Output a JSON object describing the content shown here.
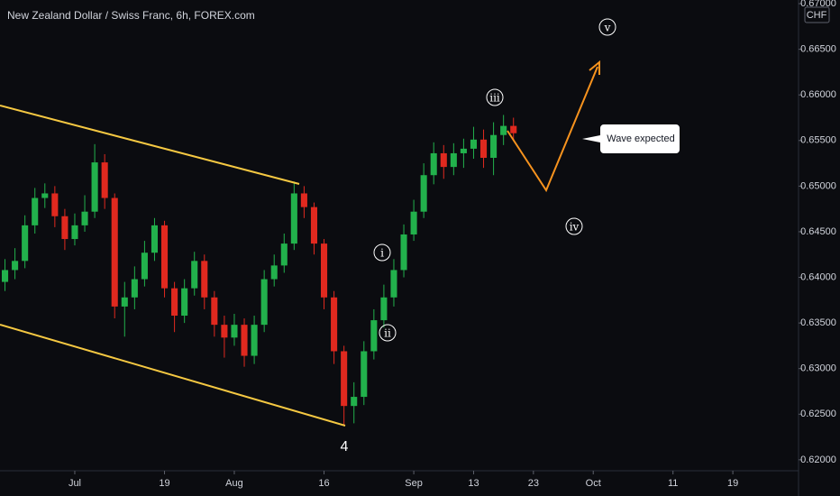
{
  "chart_data": {
    "type": "candlestick",
    "title": "New Zealand Dollar / Swiss Franc, 6h, FOREX.com",
    "currency": "CHF",
    "up_color": "#22b14c",
    "down_color": "#e0291f",
    "categories": [
      null,
      null,
      null,
      null,
      null,
      null,
      null,
      "Jul",
      null,
      null,
      null,
      null,
      null,
      null,
      null,
      null,
      "19",
      null,
      null,
      null,
      null,
      null,
      null,
      "Aug",
      null,
      null,
      null,
      null,
      null,
      null,
      null,
      null,
      "16",
      null,
      null,
      null,
      null,
      null,
      null,
      null,
      null,
      "Sep",
      null,
      null,
      null,
      null,
      null,
      "13",
      null,
      null,
      null,
      null,
      null,
      "23",
      null,
      null,
      null,
      null,
      null,
      "Oct",
      null,
      null,
      null,
      null,
      null,
      null,
      null,
      "11",
      null,
      null,
      null,
      null,
      null,
      "19",
      null,
      null,
      null,
      null,
      null,
      null
    ],
    "open": [
      0.6395,
      0.6408,
      0.6418,
      0.6457,
      0.6487,
      0.6492,
      0.6467,
      0.6442,
      0.6457,
      0.6472,
      0.6526,
      0.6487,
      0.6368,
      0.6378,
      0.6398,
      0.6427,
      0.6457,
      0.6388,
      0.6358,
      0.6388,
      0.6418,
      0.6378,
      0.6348,
      0.6334,
      0.6348,
      0.6314,
      0.6348,
      0.6398,
      0.6413,
      0.6437,
      0.6492,
      0.6477,
      0.6437,
      0.6378,
      0.6319,
      0.6259,
      0.6269,
      0.6319,
      0.6353,
      0.6378,
      0.6408,
      0.6447,
      0.6472,
      0.6512,
      0.6536,
      0.6521,
      0.6536,
      0.6541,
      0.6551,
      0.6531,
      0.6556,
      0.6566,
      null,
      null,
      null,
      null,
      null,
      null,
      null,
      null,
      null,
      null,
      null,
      null,
      null,
      null,
      null,
      null,
      null,
      null,
      null,
      null,
      null,
      null,
      null,
      null,
      null,
      null,
      null,
      null
    ],
    "high": [
      0.642,
      0.6432,
      0.6468,
      0.6498,
      0.6503,
      0.65,
      0.6475,
      0.647,
      0.649,
      0.6546,
      0.6535,
      0.6492,
      0.6395,
      0.6412,
      0.644,
      0.6465,
      0.6462,
      0.6395,
      0.6398,
      0.6428,
      0.6425,
      0.6385,
      0.6358,
      0.636,
      0.6355,
      0.6358,
      0.6408,
      0.6425,
      0.6448,
      0.6505,
      0.65,
      0.6482,
      0.6442,
      0.6385,
      0.6325,
      0.6285,
      0.633,
      0.6365,
      0.6392,
      0.642,
      0.6458,
      0.6485,
      0.6525,
      0.6548,
      0.6545,
      0.6547,
      0.6552,
      0.6565,
      0.6562,
      0.657,
      0.6578,
      0.6575,
      null,
      null,
      null,
      null,
      null,
      null,
      null,
      null,
      null,
      null,
      null,
      null,
      null,
      null,
      null,
      null,
      null,
      null,
      null,
      null,
      null,
      null,
      null,
      null,
      null,
      null,
      null,
      null
    ],
    "low": [
      0.6385,
      0.6398,
      0.641,
      0.6448,
      0.6476,
      0.6455,
      0.643,
      0.6435,
      0.645,
      0.6465,
      0.6475,
      0.6355,
      0.6335,
      0.6365,
      0.639,
      0.6418,
      0.6378,
      0.634,
      0.635,
      0.638,
      0.6365,
      0.6335,
      0.6312,
      0.6325,
      0.6302,
      0.6305,
      0.634,
      0.639,
      0.6405,
      0.643,
      0.6465,
      0.6425,
      0.6365,
      0.6305,
      0.6238,
      0.624,
      0.626,
      0.631,
      0.6345,
      0.6368,
      0.64,
      0.644,
      0.6465,
      0.6502,
      0.6508,
      0.6512,
      0.652,
      0.653,
      0.652,
      0.6512,
      0.6545,
      0.655,
      null,
      null,
      null,
      null,
      null,
      null,
      null,
      null,
      null,
      null,
      null,
      null,
      null,
      null,
      null,
      null,
      null,
      null,
      null,
      null,
      null,
      null,
      null,
      null,
      null,
      null,
      null,
      null
    ],
    "close": [
      0.6408,
      0.6418,
      0.6457,
      0.6487,
      0.6492,
      0.6467,
      0.6442,
      0.6457,
      0.6472,
      0.6526,
      0.6487,
      0.6368,
      0.6378,
      0.6398,
      0.6427,
      0.6457,
      0.6388,
      0.6358,
      0.6388,
      0.6418,
      0.6378,
      0.6348,
      0.6334,
      0.6348,
      0.6314,
      0.6348,
      0.6398,
      0.6413,
      0.6437,
      0.6492,
      0.6477,
      0.6437,
      0.6378,
      0.6319,
      0.6259,
      0.6269,
      0.6319,
      0.6353,
      0.6378,
      0.6408,
      0.6447,
      0.6472,
      0.6512,
      0.6536,
      0.6521,
      0.6536,
      0.6541,
      0.6551,
      0.6531,
      0.6556,
      0.6566,
      0.6558,
      null,
      null,
      null,
      null,
      null,
      null,
      null,
      null,
      null,
      null,
      null,
      null,
      null,
      null,
      null,
      null,
      null,
      null,
      null,
      null,
      null,
      null,
      null,
      null,
      null,
      null,
      null,
      null
    ],
    "ylim": [
      0.6188,
      0.6704
    ],
    "yticks": [
      {
        "value": 0.62,
        "label": "0.62000"
      },
      {
        "value": 0.625,
        "label": "0.62500"
      },
      {
        "value": 0.63,
        "label": "0.63000"
      },
      {
        "value": 0.635,
        "label": "0.63500"
      },
      {
        "value": 0.64,
        "label": "0.64000"
      },
      {
        "value": 0.645,
        "label": "0.64500"
      },
      {
        "value": 0.65,
        "label": "0.65000"
      },
      {
        "value": 0.655,
        "label": "0.65500"
      },
      {
        "value": 0.66,
        "label": "0.66000"
      },
      {
        "value": 0.665,
        "label": "0.66500"
      },
      {
        "value": 0.67,
        "label": "0.67000"
      }
    ],
    "annotations": {
      "wave_4": "4",
      "wave_i": "i",
      "wave_ii": "ii",
      "wave_iii": "iii",
      "wave_iv": "iv",
      "wave_v": "v",
      "callout": "Wave expected"
    }
  }
}
